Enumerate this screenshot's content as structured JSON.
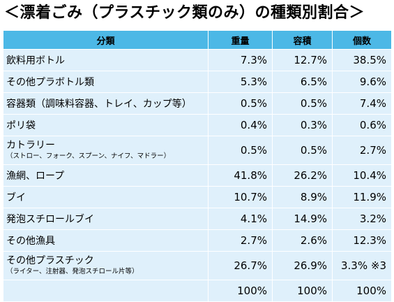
{
  "title": "＜漂着ごみ（プラスチック類のみ）の種類別割合＞",
  "table": {
    "headers": [
      "分類",
      "重量",
      "容積",
      "個数"
    ],
    "rows": [
      {
        "name": "飲料用ボトル",
        "sub": "",
        "weight": "7.3%",
        "volume": "12.7%",
        "count": "38.5%"
      },
      {
        "name": "その他プラボトル類",
        "sub": "",
        "weight": "5.3%",
        "volume": "6.5%",
        "count": "9.6%"
      },
      {
        "name": "容器類（調味料容器、トレイ、カップ等）",
        "sub": "",
        "weight": "0.5%",
        "volume": "0.5%",
        "count": "7.4%"
      },
      {
        "name": "ポリ袋",
        "sub": "",
        "weight": "0.4%",
        "volume": "0.3%",
        "count": "0.6%"
      },
      {
        "name": "カトラリー",
        "sub": "（ストロー、フォーク、スプーン、ナイフ、マドラー）",
        "weight": "0.5%",
        "volume": "0.5%",
        "count": "2.7%"
      },
      {
        "name": "漁網、ロープ",
        "sub": "",
        "weight": "41.8%",
        "volume": "26.2%",
        "count": "10.4%"
      },
      {
        "name": "ブイ",
        "sub": "",
        "weight": "10.7%",
        "volume": "8.9%",
        "count": "11.9%"
      },
      {
        "name": "発泡スチロールブイ",
        "sub": "",
        "weight": "4.1%",
        "volume": "14.9%",
        "count": "3.2%"
      },
      {
        "name": "その他漁具",
        "sub": "",
        "weight": "2.7%",
        "volume": "2.6%",
        "count": "12.3%"
      },
      {
        "name": "その他プラスチック",
        "sub": "（ライター、注射器、発泡スチロール片等）",
        "weight": "26.7%",
        "volume": "26.9%",
        "count": "3.3% ※3"
      }
    ],
    "total": {
      "name": "",
      "weight": "100%",
      "volume": "100%",
      "count": "100%"
    }
  },
  "colors": {
    "header_bg": "#4cb8e6",
    "cell_bg": "#dff0fb",
    "border": "#ffffff"
  }
}
